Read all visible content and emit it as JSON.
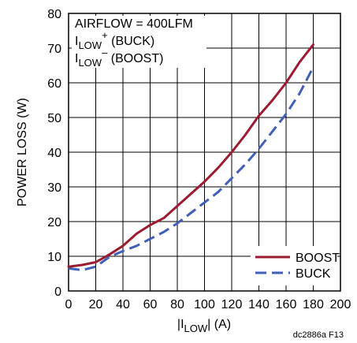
{
  "chart_data": {
    "type": "line",
    "xlabel": {
      "prefix": "|I",
      "sub": "LOW",
      "suffix": "| (A)"
    },
    "ylabel": "POWER LOSS (W)",
    "xlim": [
      0,
      200
    ],
    "ylim": [
      0,
      80
    ],
    "xticks": [
      0,
      20,
      40,
      60,
      80,
      100,
      120,
      140,
      160,
      180,
      200
    ],
    "yticks": [
      0,
      10,
      20,
      30,
      40,
      50,
      60,
      70,
      80
    ],
    "grid": true,
    "annotations": [
      {
        "parts": [
          {
            "t": "AIRFLOW = 400LFM"
          }
        ]
      },
      {
        "parts": [
          {
            "t": "I"
          },
          {
            "t": "LOW",
            "sub": true
          },
          {
            "t": "+",
            "sup": true
          },
          {
            "t": " (BUCK)"
          }
        ]
      },
      {
        "parts": [
          {
            "t": "I"
          },
          {
            "t": "LOW",
            "sub": true
          },
          {
            "t": "–",
            "sup": true
          },
          {
            "t": " (BOOST)"
          }
        ]
      }
    ],
    "legend_position": "bottom-right",
    "series": [
      {
        "name": "BOOST",
        "color": "#9b1b30",
        "dash": "solid",
        "x": [
          0,
          10,
          20,
          30,
          40,
          50,
          60,
          70,
          80,
          90,
          100,
          110,
          120,
          130,
          140,
          150,
          160,
          170,
          180
        ],
        "y": [
          7,
          7.5,
          8.3,
          10.5,
          13,
          16.5,
          19,
          21,
          24.5,
          28,
          31.5,
          35.5,
          40,
          45,
          50.5,
          55,
          60,
          66,
          71
        ]
      },
      {
        "name": "BUCK",
        "color": "#3f5fb8",
        "dash": "dashed",
        "x": [
          0,
          10,
          20,
          30,
          40,
          50,
          60,
          70,
          80,
          90,
          100,
          110,
          120,
          130,
          140,
          150,
          160,
          170,
          180
        ],
        "y": [
          6.5,
          6,
          7,
          9.8,
          11.5,
          13,
          15,
          17,
          19.5,
          22.5,
          25.5,
          28.5,
          32.5,
          36.5,
          41,
          46,
          51,
          57,
          64.5
        ]
      }
    ]
  },
  "figure_id": "dc2886a F13"
}
